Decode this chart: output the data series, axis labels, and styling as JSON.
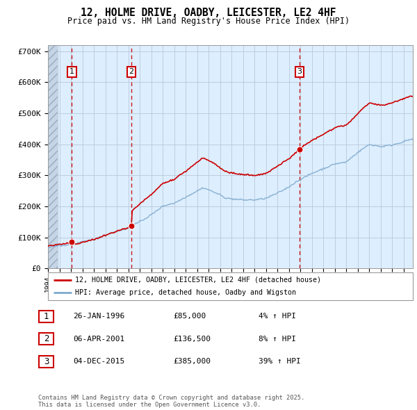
{
  "title": "12, HOLME DRIVE, OADBY, LEICESTER, LE2 4HF",
  "subtitle": "Price paid vs. HM Land Registry's House Price Index (HPI)",
  "background_color": "#ffffff",
  "plot_bg_color": "#ddeeff",
  "grid_color": "#b8c8d8",
  "red_line_color": "#cc0000",
  "blue_line_color": "#7faacc",
  "vline_color": "#cc0000",
  "sale_dates": [
    1996.08,
    2001.27,
    2015.92
  ],
  "sale_prices": [
    85000,
    136500,
    385000
  ],
  "ylim": [
    0,
    720000
  ],
  "xlim": [
    1994.0,
    2025.8
  ],
  "yticks": [
    0,
    100000,
    200000,
    300000,
    400000,
    500000,
    600000,
    700000
  ],
  "ytick_labels": [
    "£0",
    "£100K",
    "£200K",
    "£300K",
    "£400K",
    "£500K",
    "£600K",
    "£700K"
  ],
  "xticks": [
    1994,
    1995,
    1996,
    1997,
    1998,
    1999,
    2000,
    2001,
    2002,
    2003,
    2004,
    2005,
    2006,
    2007,
    2008,
    2009,
    2010,
    2011,
    2012,
    2013,
    2014,
    2015,
    2016,
    2017,
    2018,
    2019,
    2020,
    2021,
    2022,
    2023,
    2024,
    2025
  ],
  "legend_red_label": "12, HOLME DRIVE, OADBY, LEICESTER, LE2 4HF (detached house)",
  "legend_blue_label": "HPI: Average price, detached house, Oadby and Wigston",
  "table_rows": [
    {
      "num": "1",
      "date": "26-JAN-1996",
      "price": "£85,000",
      "hpi": "4% ↑ HPI"
    },
    {
      "num": "2",
      "date": "06-APR-2001",
      "price": "£136,500",
      "hpi": "8% ↑ HPI"
    },
    {
      "num": "3",
      "date": "04-DEC-2015",
      "price": "£385,000",
      "hpi": "39% ↑ HPI"
    }
  ],
  "footer": "Contains HM Land Registry data © Crown copyright and database right 2025.\nThis data is licensed under the Open Government Licence v3.0."
}
